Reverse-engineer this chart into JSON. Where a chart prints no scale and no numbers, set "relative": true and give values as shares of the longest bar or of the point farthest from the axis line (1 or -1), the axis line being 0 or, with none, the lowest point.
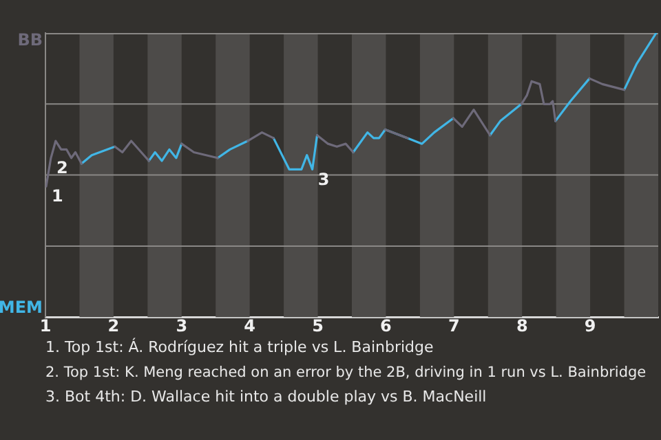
{
  "chart_data": {
    "type": "line",
    "relative": true,
    "x": [
      1.01,
      1.08,
      1.15,
      1.23,
      1.31,
      1.38,
      1.44,
      1.53,
      1.68,
      2.02,
      2.13,
      2.26,
      2.52,
      2.61,
      2.71,
      2.82,
      2.92,
      3.0,
      3.18,
      3.53,
      3.71,
      3.97,
      4.18,
      4.35,
      4.58,
      4.76,
      4.84,
      4.92,
      4.99,
      5.15,
      5.28,
      5.41,
      5.52,
      5.73,
      5.82,
      5.9,
      5.99,
      6.32,
      6.53,
      6.71,
      6.99,
      7.12,
      7.29,
      7.53,
      7.68,
      7.99,
      8.07,
      8.14,
      8.26,
      8.32,
      8.41,
      8.45,
      8.49,
      8.71,
      8.99,
      9.18,
      9.5,
      9.68,
      9.97
    ],
    "series": [
      {
        "color": "#6e6a7a",
        "values": [
          0.46,
          0.56,
          0.62,
          0.59,
          0.59,
          0.56,
          0.58,
          0.54,
          null,
          0.6,
          0.58,
          0.62,
          0.55,
          null,
          null,
          null,
          null,
          0.61,
          0.58,
          0.56,
          null,
          0.62,
          0.65,
          0.63,
          null,
          null,
          null,
          null,
          0.64,
          0.61,
          0.6,
          0.61,
          0.58,
          null,
          null,
          null,
          0.66,
          0.63,
          null,
          null,
          0.7,
          0.67,
          0.73,
          0.64,
          null,
          0.75,
          0.78,
          0.83,
          0.82,
          0.75,
          0.75,
          0.76,
          0.69,
          null,
          0.84,
          0.82,
          0.8,
          null,
          null
        ]
      },
      {
        "color": "#41b6e6",
        "values": [
          null,
          null,
          null,
          null,
          null,
          null,
          null,
          0.54,
          0.57,
          0.6,
          null,
          null,
          0.55,
          0.58,
          0.55,
          0.59,
          0.56,
          0.61,
          null,
          0.56,
          0.59,
          0.62,
          null,
          0.63,
          0.52,
          0.52,
          0.57,
          0.52,
          0.64,
          null,
          null,
          null,
          0.58,
          0.65,
          0.63,
          0.63,
          0.66,
          0.63,
          0.61,
          0.65,
          0.7,
          null,
          null,
          0.64,
          0.69,
          0.75,
          null,
          null,
          null,
          null,
          null,
          null,
          0.69,
          0.76,
          0.84,
          null,
          0.8,
          0.89,
          1
        ]
      }
    ],
    "xlim": [
      1,
      10
    ],
    "xticks": [
      1,
      2,
      3,
      4,
      5,
      6,
      7,
      8,
      9
    ],
    "legend": false,
    "marker": "none",
    "line_style": "solid",
    "ref_lines": [
      {
        "axis": "y",
        "value": 0.25,
        "color": "#8a8886"
      },
      {
        "axis": "y",
        "value": 0.5,
        "color": "#8a8886"
      },
      {
        "axis": "y",
        "value": 0.75,
        "color": "#8a8886"
      }
    ],
    "bands": [
      {
        "axis": "x",
        "from": 1.5,
        "to": 2,
        "color": "#4d4b49"
      },
      {
        "axis": "x",
        "from": 2.5,
        "to": 3,
        "color": "#4d4b49"
      },
      {
        "axis": "x",
        "from": 3.5,
        "to": 4,
        "color": "#4d4b49"
      },
      {
        "axis": "x",
        "from": 4.5,
        "to": 5,
        "color": "#4d4b49"
      },
      {
        "axis": "x",
        "from": 5.5,
        "to": 6,
        "color": "#4d4b49"
      },
      {
        "axis": "x",
        "from": 6.5,
        "to": 7,
        "color": "#4d4b49"
      },
      {
        "axis": "x",
        "from": 7.5,
        "to": 8,
        "color": "#4d4b49"
      },
      {
        "axis": "x",
        "from": 8.5,
        "to": 9,
        "color": "#4d4b49"
      },
      {
        "axis": "x",
        "from": 9.5,
        "to": 10,
        "color": "#4d4b49"
      }
    ],
    "annotations": [
      "BB",
      "MEM",
      {
        "text": "1",
        "x": 1.01,
        "y": 0.46
      },
      {
        "text": "2",
        "x": 1.08,
        "y": 0.56
      },
      {
        "text": "3",
        "x": 4.92,
        "y": 0.52
      },
      "1. Top 1st: Á. Rodríguez hit a triple vs L. Bainbridge",
      "2. Top 1st: K. Meng reached on an error by the 2B, driving in 1 run vs L. Bainbridge",
      "3. Bot 4th: D. Wallace hit into a double play vs B. MacNeill"
    ]
  }
}
